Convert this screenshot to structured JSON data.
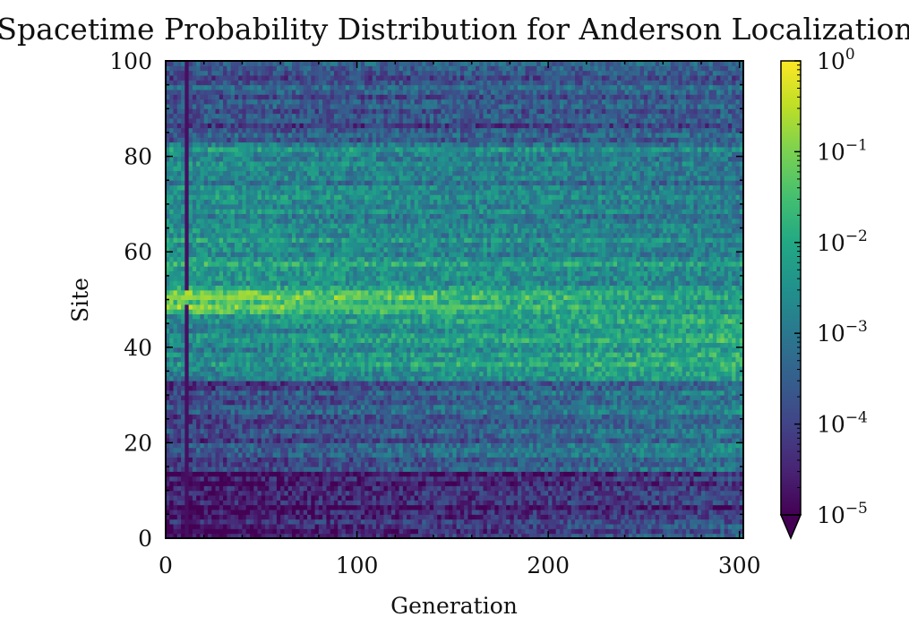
{
  "chart_data": {
    "type": "heatmap",
    "title": "Spacetime Probability Distribution for Anderson Localization",
    "xlabel": "Generation",
    "ylabel": "Site",
    "xlim": [
      0,
      302
    ],
    "ylim": [
      0,
      100
    ],
    "x_ticks": [
      0,
      100,
      200,
      300
    ],
    "x_tick_labels": [
      "0",
      "100",
      "200",
      "300"
    ],
    "y_ticks": [
      0,
      20,
      40,
      60,
      80,
      100
    ],
    "y_tick_labels": [
      "0",
      "20",
      "40",
      "60",
      "80",
      "100"
    ],
    "colormap": "viridis",
    "color_scale": "log",
    "color_range": [
      1e-05,
      1
    ],
    "colorbar_extend": "min",
    "colorbar": {
      "ticks": [
        1e-05,
        0.0001,
        0.001,
        0.01,
        0.1,
        1
      ],
      "tick_labels": [
        {
          "base": "10",
          "exp": "−5"
        },
        {
          "base": "10",
          "exp": "−4"
        },
        {
          "base": "10",
          "exp": "−3"
        },
        {
          "base": "10",
          "exp": "−2"
        },
        {
          "base": "10",
          "exp": "−1"
        },
        {
          "base": "10",
          "exp": "0"
        }
      ]
    },
    "grid": false,
    "log10_probability_profile": {
      "site_bands": [
        {
          "sites": [
            0,
            3
          ],
          "early": -5.0,
          "late": -3.5
        },
        {
          "sites": [
            3,
            14
          ],
          "early": -4.8,
          "late": -4.2
        },
        {
          "sites": [
            14,
            33
          ],
          "early": -4.0,
          "late": -3.0
        },
        {
          "sites": [
            33,
            47
          ],
          "early": -2.8,
          "late": -2.0
        },
        {
          "sites": [
            47,
            52
          ],
          "early": -1.0,
          "late": -2.2
        },
        {
          "sites": [
            52,
            66
          ],
          "early": -2.2,
          "late": -2.6
        },
        {
          "sites": [
            66,
            83
          ],
          "early": -2.6,
          "late": -3.0
        },
        {
          "sites": [
            83,
            100
          ],
          "early": -3.8,
          "late": -3.6
        }
      ],
      "initial_peak": {
        "site": 50,
        "generation_range": [
          0,
          45
        ],
        "log10": -0.9
      },
      "secondary_streak": {
        "site": 48,
        "generation_range": [
          70,
          175
        ],
        "log10": -1.4
      },
      "early_dark_column": {
        "generation": 10,
        "log10": -4.8
      }
    }
  }
}
